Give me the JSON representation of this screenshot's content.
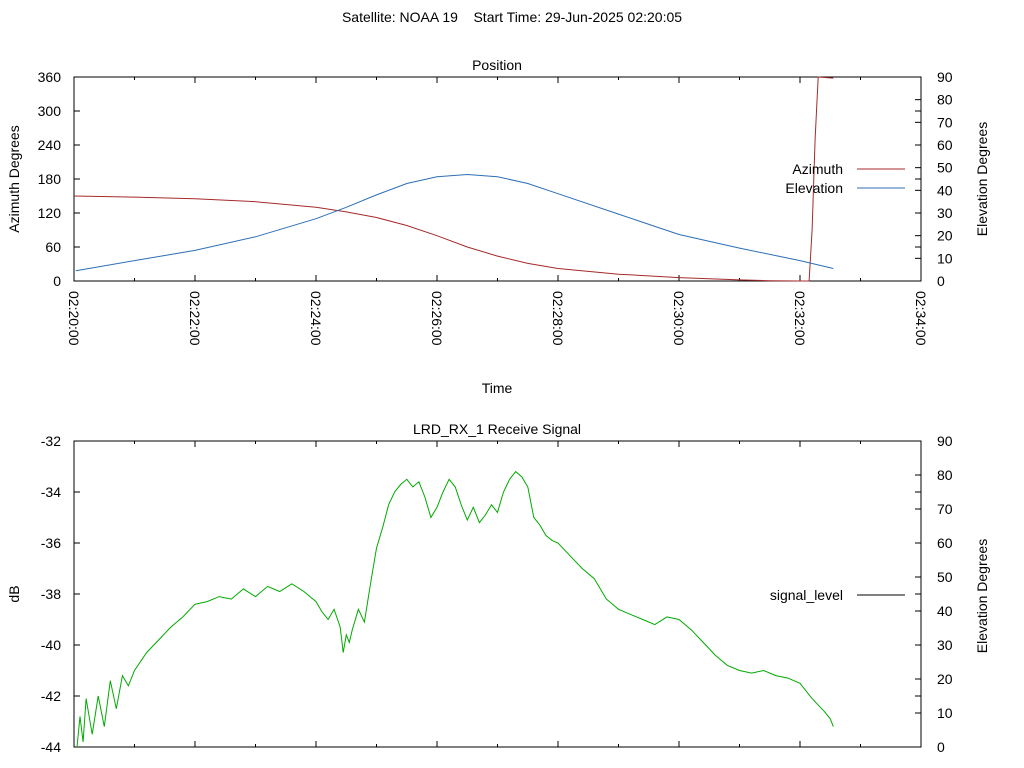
{
  "header": {
    "title": "Satellite: NOAA 19    Start Time: 29-Jun-2025 02:20:05"
  },
  "x_axis": {
    "label": "Time",
    "ticks": [
      "02:20:00",
      "02:22:00",
      "02:24:00",
      "02:26:00",
      "02:28:00",
      "02:30:00",
      "02:32:00",
      "02:34:00"
    ]
  },
  "colors": {
    "azimuth": "#a52a2a",
    "elevation": "#2c6fb6",
    "signal": "#00aa00",
    "signal_legend": "#000000"
  },
  "chart_data": [
    {
      "type": "line",
      "title": "Position",
      "xlabel": "Time",
      "ylabel": "Azimuth Degrees",
      "y2label": "Elevation Degrees",
      "x_unit": "minutes after 02:20:00",
      "xlim": [
        0,
        14
      ],
      "ylim": [
        0,
        360
      ],
      "y2lim": [
        0,
        90
      ],
      "yticks": [
        0,
        60,
        120,
        180,
        240,
        300,
        360
      ],
      "y2ticks": [
        0,
        10,
        20,
        30,
        40,
        50,
        60,
        70,
        80,
        90
      ],
      "grid": false,
      "legend": "right",
      "series": [
        {
          "name": "Azimuth",
          "axis": "y",
          "x": [
            0,
            1,
            2,
            3,
            4,
            4.5,
            5,
            5.5,
            6,
            6.5,
            7,
            7.5,
            8,
            9,
            10,
            11,
            11.5,
            12.0,
            12.15,
            12.2,
            12.25,
            12.3,
            12.55
          ],
          "values": [
            150,
            148,
            145,
            140,
            130,
            122,
            112,
            98,
            80,
            60,
            44,
            31,
            22,
            12,
            6,
            2,
            0.5,
            0,
            0,
            90,
            250,
            360,
            358
          ]
        },
        {
          "name": "Elevation",
          "axis": "y2",
          "x": [
            0.03,
            1,
            2,
            3,
            4,
            4.5,
            5,
            5.5,
            6,
            6.5,
            7,
            7.5,
            8,
            9,
            10,
            11,
            12,
            12.55
          ],
          "values": [
            4.5,
            9,
            13.5,
            19.5,
            27.5,
            32.5,
            38,
            43,
            46,
            47,
            46,
            43,
            38.5,
            29.5,
            20.5,
            14.5,
            9,
            5.5
          ]
        }
      ]
    },
    {
      "type": "line",
      "title": "LRD_RX_1 Receive Signal",
      "xlabel": "Time",
      "ylabel": "dB",
      "y2label": "Elevation Degrees",
      "x_unit": "minutes after 02:20:00",
      "xlim": [
        0,
        14
      ],
      "ylim": [
        -44,
        -32
      ],
      "y2lim": [
        0,
        90
      ],
      "yticks": [
        -44,
        -42,
        -40,
        -38,
        -36,
        -34,
        -32
      ],
      "y2ticks": [
        0,
        10,
        20,
        30,
        40,
        50,
        60,
        70,
        80,
        90
      ],
      "grid": false,
      "legend": "right",
      "series": [
        {
          "name": "signal_level",
          "axis": "y",
          "x": [
            0.05,
            0.1,
            0.15,
            0.2,
            0.3,
            0.4,
            0.5,
            0.6,
            0.7,
            0.8,
            0.9,
            1.0,
            1.2,
            1.4,
            1.6,
            1.8,
            2.0,
            2.2,
            2.4,
            2.6,
            2.8,
            3.0,
            3.2,
            3.4,
            3.6,
            3.8,
            3.9,
            4.0,
            4.1,
            4.2,
            4.3,
            4.4,
            4.45,
            4.5,
            4.55,
            4.6,
            4.7,
            4.8,
            4.9,
            5.0,
            5.1,
            5.2,
            5.3,
            5.4,
            5.5,
            5.6,
            5.7,
            5.8,
            5.9,
            6.0,
            6.1,
            6.2,
            6.3,
            6.4,
            6.5,
            6.6,
            6.7,
            6.8,
            6.9,
            7.0,
            7.1,
            7.2,
            7.3,
            7.4,
            7.5,
            7.6,
            7.7,
            7.8,
            7.9,
            8.0,
            8.2,
            8.4,
            8.6,
            8.8,
            9.0,
            9.2,
            9.4,
            9.6,
            9.8,
            10.0,
            10.2,
            10.4,
            10.6,
            10.8,
            11.0,
            11.2,
            11.4,
            11.6,
            11.8,
            12.0,
            12.2,
            12.4,
            12.5,
            12.55
          ],
          "values": [
            -44,
            -42.8,
            -43.8,
            -42.1,
            -43.5,
            -42.0,
            -43.2,
            -41.4,
            -42.5,
            -41.2,
            -41.6,
            -41.0,
            -40.3,
            -39.8,
            -39.3,
            -38.9,
            -38.4,
            -38.3,
            -38.1,
            -38.2,
            -37.8,
            -38.1,
            -37.7,
            -37.9,
            -37.6,
            -37.9,
            -38.1,
            -38.3,
            -38.7,
            -39.0,
            -38.6,
            -39.3,
            -40.3,
            -39.6,
            -39.9,
            -39.4,
            -38.6,
            -39.1,
            -37.6,
            -36.2,
            -35.4,
            -34.5,
            -34.0,
            -33.7,
            -33.5,
            -33.8,
            -33.6,
            -34.2,
            -35.0,
            -34.6,
            -34.0,
            -33.5,
            -33.8,
            -34.5,
            -35.1,
            -34.6,
            -35.2,
            -34.9,
            -34.5,
            -34.8,
            -34.0,
            -33.5,
            -33.2,
            -33.4,
            -33.8,
            -35.0,
            -35.3,
            -35.7,
            -35.9,
            -36.0,
            -36.5,
            -37.0,
            -37.4,
            -38.2,
            -38.6,
            -38.8,
            -39.0,
            -39.2,
            -38.9,
            -39.0,
            -39.4,
            -39.9,
            -40.4,
            -40.8,
            -41.0,
            -41.1,
            -41.0,
            -41.2,
            -41.3,
            -41.5,
            -42.1,
            -42.6,
            -42.9,
            -43.2
          ]
        }
      ]
    }
  ]
}
